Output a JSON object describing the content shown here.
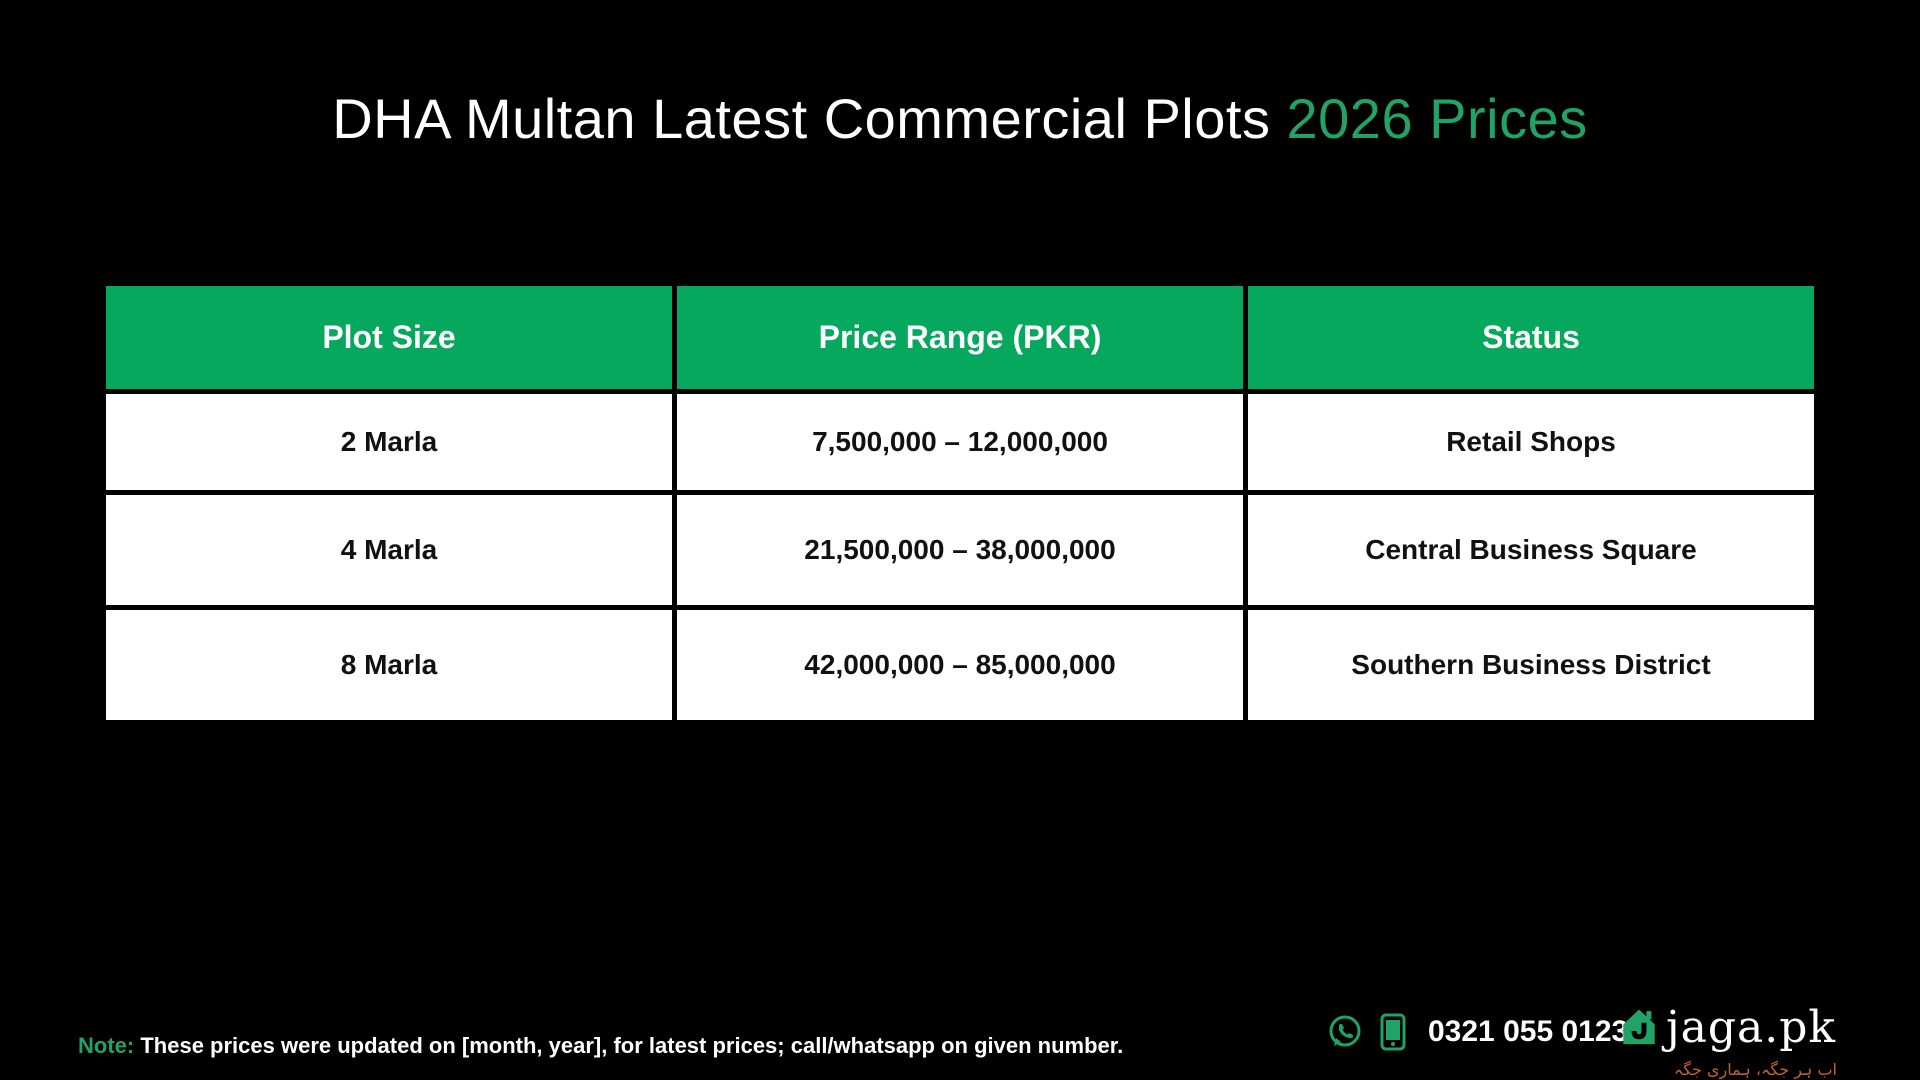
{
  "title": {
    "main": "DHA Multan Latest Commercial Plots",
    "accent": "2026 Prices"
  },
  "table": {
    "headers": [
      "Plot Size",
      "Price Range (PKR)",
      "Status"
    ],
    "rows": [
      [
        "2 Marla",
        "7,500,000 – 12,000,000",
        "Retail Shops"
      ],
      [
        "4 Marla",
        "21,500,000 – 38,000,000",
        "Central Business Square"
      ],
      [
        "8 Marla",
        "42,000,000 – 85,000,000",
        "Southern Business District"
      ]
    ]
  },
  "note": {
    "label": "Note:",
    "text": "These prices were updated on [month, year], for latest prices; call/whatsapp on given number."
  },
  "contact": {
    "phone": "0321 055 0123",
    "icons": [
      "whatsapp-icon",
      "mobile-phone-icon"
    ]
  },
  "brand": {
    "name": "jaga.pk",
    "tagline": "اب ہر جگہ، ہماری جگہ",
    "logo_icon": "house-logo-icon"
  },
  "colors": {
    "background": "#000000",
    "accent_green": "#05a85c",
    "title_accent": "#21a366",
    "tagline": "#c0622a"
  }
}
